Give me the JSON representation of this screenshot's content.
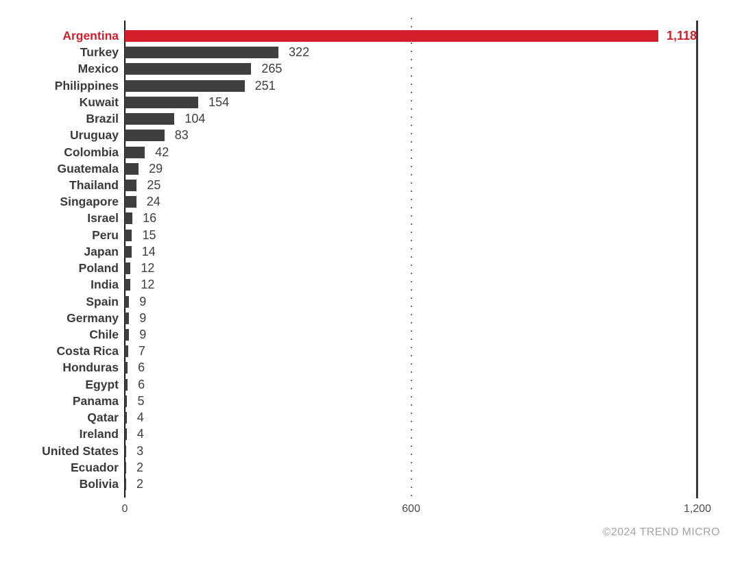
{
  "chart_data": {
    "type": "bar",
    "orientation": "horizontal",
    "title": "",
    "xlabel": "",
    "ylabel": "",
    "xlim": [
      0,
      1200
    ],
    "x_ticks": [
      {
        "value": 0,
        "label": "0"
      },
      {
        "value": 600,
        "label": "600"
      },
      {
        "value": 1200,
        "label": "1,200"
      }
    ],
    "gridlines": {
      "at_600": "dotted",
      "at_0": "solid",
      "at_1200": "solid"
    },
    "legend": "none",
    "rows": [
      {
        "label": "Argentina",
        "value": 1118,
        "display": "1,118",
        "highlight": true
      },
      {
        "label": "Turkey",
        "value": 322,
        "display": "322",
        "highlight": false
      },
      {
        "label": "Mexico",
        "value": 265,
        "display": "265",
        "highlight": false
      },
      {
        "label": "Philippines",
        "value": 251,
        "display": "251",
        "highlight": false
      },
      {
        "label": "Kuwait",
        "value": 154,
        "display": "154",
        "highlight": false
      },
      {
        "label": "Brazil",
        "value": 104,
        "display": "104",
        "highlight": false
      },
      {
        "label": "Uruguay",
        "value": 83,
        "display": "83",
        "highlight": false
      },
      {
        "label": "Colombia",
        "value": 42,
        "display": "42",
        "highlight": false
      },
      {
        "label": "Guatemala",
        "value": 29,
        "display": "29",
        "highlight": false
      },
      {
        "label": "Thailand",
        "value": 25,
        "display": "25",
        "highlight": false
      },
      {
        "label": "Singapore",
        "value": 24,
        "display": "24",
        "highlight": false
      },
      {
        "label": "Israel",
        "value": 16,
        "display": "16",
        "highlight": false
      },
      {
        "label": "Peru",
        "value": 15,
        "display": "15",
        "highlight": false
      },
      {
        "label": "Japan",
        "value": 14,
        "display": "14",
        "highlight": false
      },
      {
        "label": "Poland",
        "value": 12,
        "display": "12",
        "highlight": false
      },
      {
        "label": "India",
        "value": 12,
        "display": "12",
        "highlight": false
      },
      {
        "label": "Spain",
        "value": 9,
        "display": "9",
        "highlight": false
      },
      {
        "label": "Germany",
        "value": 9,
        "display": "9",
        "highlight": false
      },
      {
        "label": "Chile",
        "value": 9,
        "display": "9",
        "highlight": false
      },
      {
        "label": "Costa Rica",
        "value": 7,
        "display": "7",
        "highlight": false
      },
      {
        "label": "Honduras",
        "value": 6,
        "display": "6",
        "highlight": false
      },
      {
        "label": "Egypt",
        "value": 6,
        "display": "6",
        "highlight": false
      },
      {
        "label": "Panama",
        "value": 5,
        "display": "5",
        "highlight": false
      },
      {
        "label": "Qatar",
        "value": 4,
        "display": "4",
        "highlight": false
      },
      {
        "label": "Ireland",
        "value": 4,
        "display": "4",
        "highlight": false
      },
      {
        "label": "United States",
        "value": 3,
        "display": "3",
        "highlight": false
      },
      {
        "label": "Ecuador",
        "value": 2,
        "display": "2",
        "highlight": false
      },
      {
        "label": "Bolivia",
        "value": 2,
        "display": "2",
        "highlight": false
      }
    ]
  },
  "colors": {
    "highlight_red": "#d21f2b",
    "bar_gray": "#3f3f42",
    "category_label": "#3a3a3a",
    "value_label": "#3d3d3d",
    "axis_line_left": "#161616",
    "axis_line_right": "#3a3a3a",
    "grid_dot": "#6f6f6f",
    "tick_label": "#4a4a4a",
    "copyright_gray": "#a5a5a5"
  },
  "footer": {
    "copyright": "©2024 TREND MICRO"
  }
}
